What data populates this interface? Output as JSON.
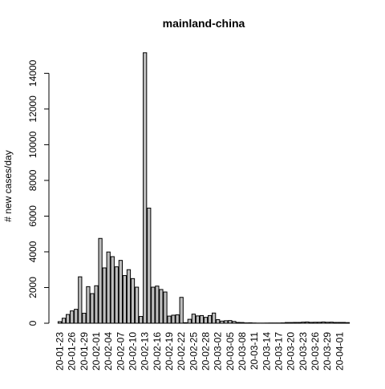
{
  "chart_data": {
    "type": "bar",
    "title": "mainland-china",
    "xlabel": "",
    "ylabel": "# new cases/day",
    "ylim": [
      0,
      15500
    ],
    "yticks": [
      0,
      2000,
      4000,
      6000,
      8000,
      10000,
      12000,
      14000
    ],
    "grid": false,
    "legend": "none",
    "bar_color": "#bebebe",
    "outline_color": "#000000",
    "xtick_labels": [
      "20-01-23",
      "20-01-26",
      "20-01-29",
      "20-02-01",
      "20-02-04",
      "20-02-07",
      "20-02-10",
      "20-02-13",
      "20-02-16",
      "20-02-19",
      "20-02-22",
      "20-02-25",
      "20-02-28",
      "20-03-02",
      "20-03-05",
      "20-03-08",
      "20-03-11",
      "20-03-14",
      "20-03-17",
      "20-03-20",
      "20-03-23",
      "20-03-26",
      "20-03-29",
      "20-04-01"
    ],
    "categories": [
      "20-01-23",
      "20-01-24",
      "20-01-25",
      "20-01-26",
      "20-01-27",
      "20-01-28",
      "20-01-29",
      "20-01-30",
      "20-01-31",
      "20-02-01",
      "20-02-02",
      "20-02-03",
      "20-02-04",
      "20-02-05",
      "20-02-06",
      "20-02-07",
      "20-02-08",
      "20-02-09",
      "20-02-10",
      "20-02-11",
      "20-02-12",
      "20-02-13",
      "20-02-14",
      "20-02-15",
      "20-02-16",
      "20-02-17",
      "20-02-18",
      "20-02-19",
      "20-02-20",
      "20-02-21",
      "20-02-22",
      "20-02-23",
      "20-02-24",
      "20-02-25",
      "20-02-26",
      "20-02-27",
      "20-02-28",
      "20-02-29",
      "20-03-01",
      "20-03-02",
      "20-03-03",
      "20-03-04",
      "20-03-05",
      "20-03-06",
      "20-03-07",
      "20-03-08",
      "20-03-09",
      "20-03-10",
      "20-03-11",
      "20-03-12",
      "20-03-13",
      "20-03-14",
      "20-03-15",
      "20-03-16",
      "20-03-17",
      "20-03-18",
      "20-03-19",
      "20-03-20",
      "20-03-21",
      "20-03-22",
      "20-03-23",
      "20-03-24",
      "20-03-25",
      "20-03-26",
      "20-03-27",
      "20-03-28",
      "20-03-29",
      "20-03-30",
      "20-03-31",
      "20-04-01",
      "20-04-02",
      "20-04-03"
    ],
    "values": [
      90,
      280,
      490,
      690,
      780,
      2600,
      560,
      2050,
      1660,
      2100,
      4750,
      3100,
      3990,
      3730,
      3160,
      3520,
      2670,
      3000,
      2500,
      2020,
      380,
      15150,
      6450,
      2020,
      2080,
      1890,
      1750,
      400,
      450,
      470,
      1450,
      30,
      220,
      510,
      410,
      430,
      330,
      430,
      570,
      200,
      120,
      140,
      150,
      100,
      45,
      40,
      20,
      25,
      15,
      10,
      10,
      12,
      15,
      15,
      15,
      20,
      40,
      40,
      45,
      45,
      60,
      70,
      50,
      55,
      55,
      70,
      55,
      60,
      45,
      45,
      45,
      35
    ]
  }
}
